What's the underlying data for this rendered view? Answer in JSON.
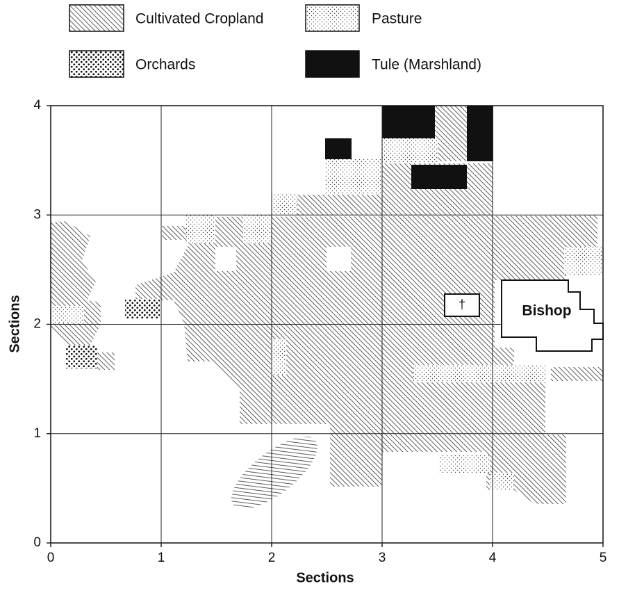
{
  "legend": [
    {
      "label": "Cultivated Cropland"
    },
    {
      "label": "Pasture"
    },
    {
      "label": "Orchards"
    },
    {
      "label": "Tule (Marshland)"
    }
  ],
  "map": {
    "xlabel": "Sections",
    "ylabel": "Sections",
    "xlim": [
      0,
      5
    ],
    "ylim": [
      0,
      4
    ],
    "xticks": [
      0,
      1,
      2,
      3,
      4,
      5
    ],
    "yticks": [
      0,
      1,
      2,
      3,
      4
    ],
    "places": [
      {
        "label": "Bishop"
      },
      {
        "label": "†"
      }
    ]
  }
}
